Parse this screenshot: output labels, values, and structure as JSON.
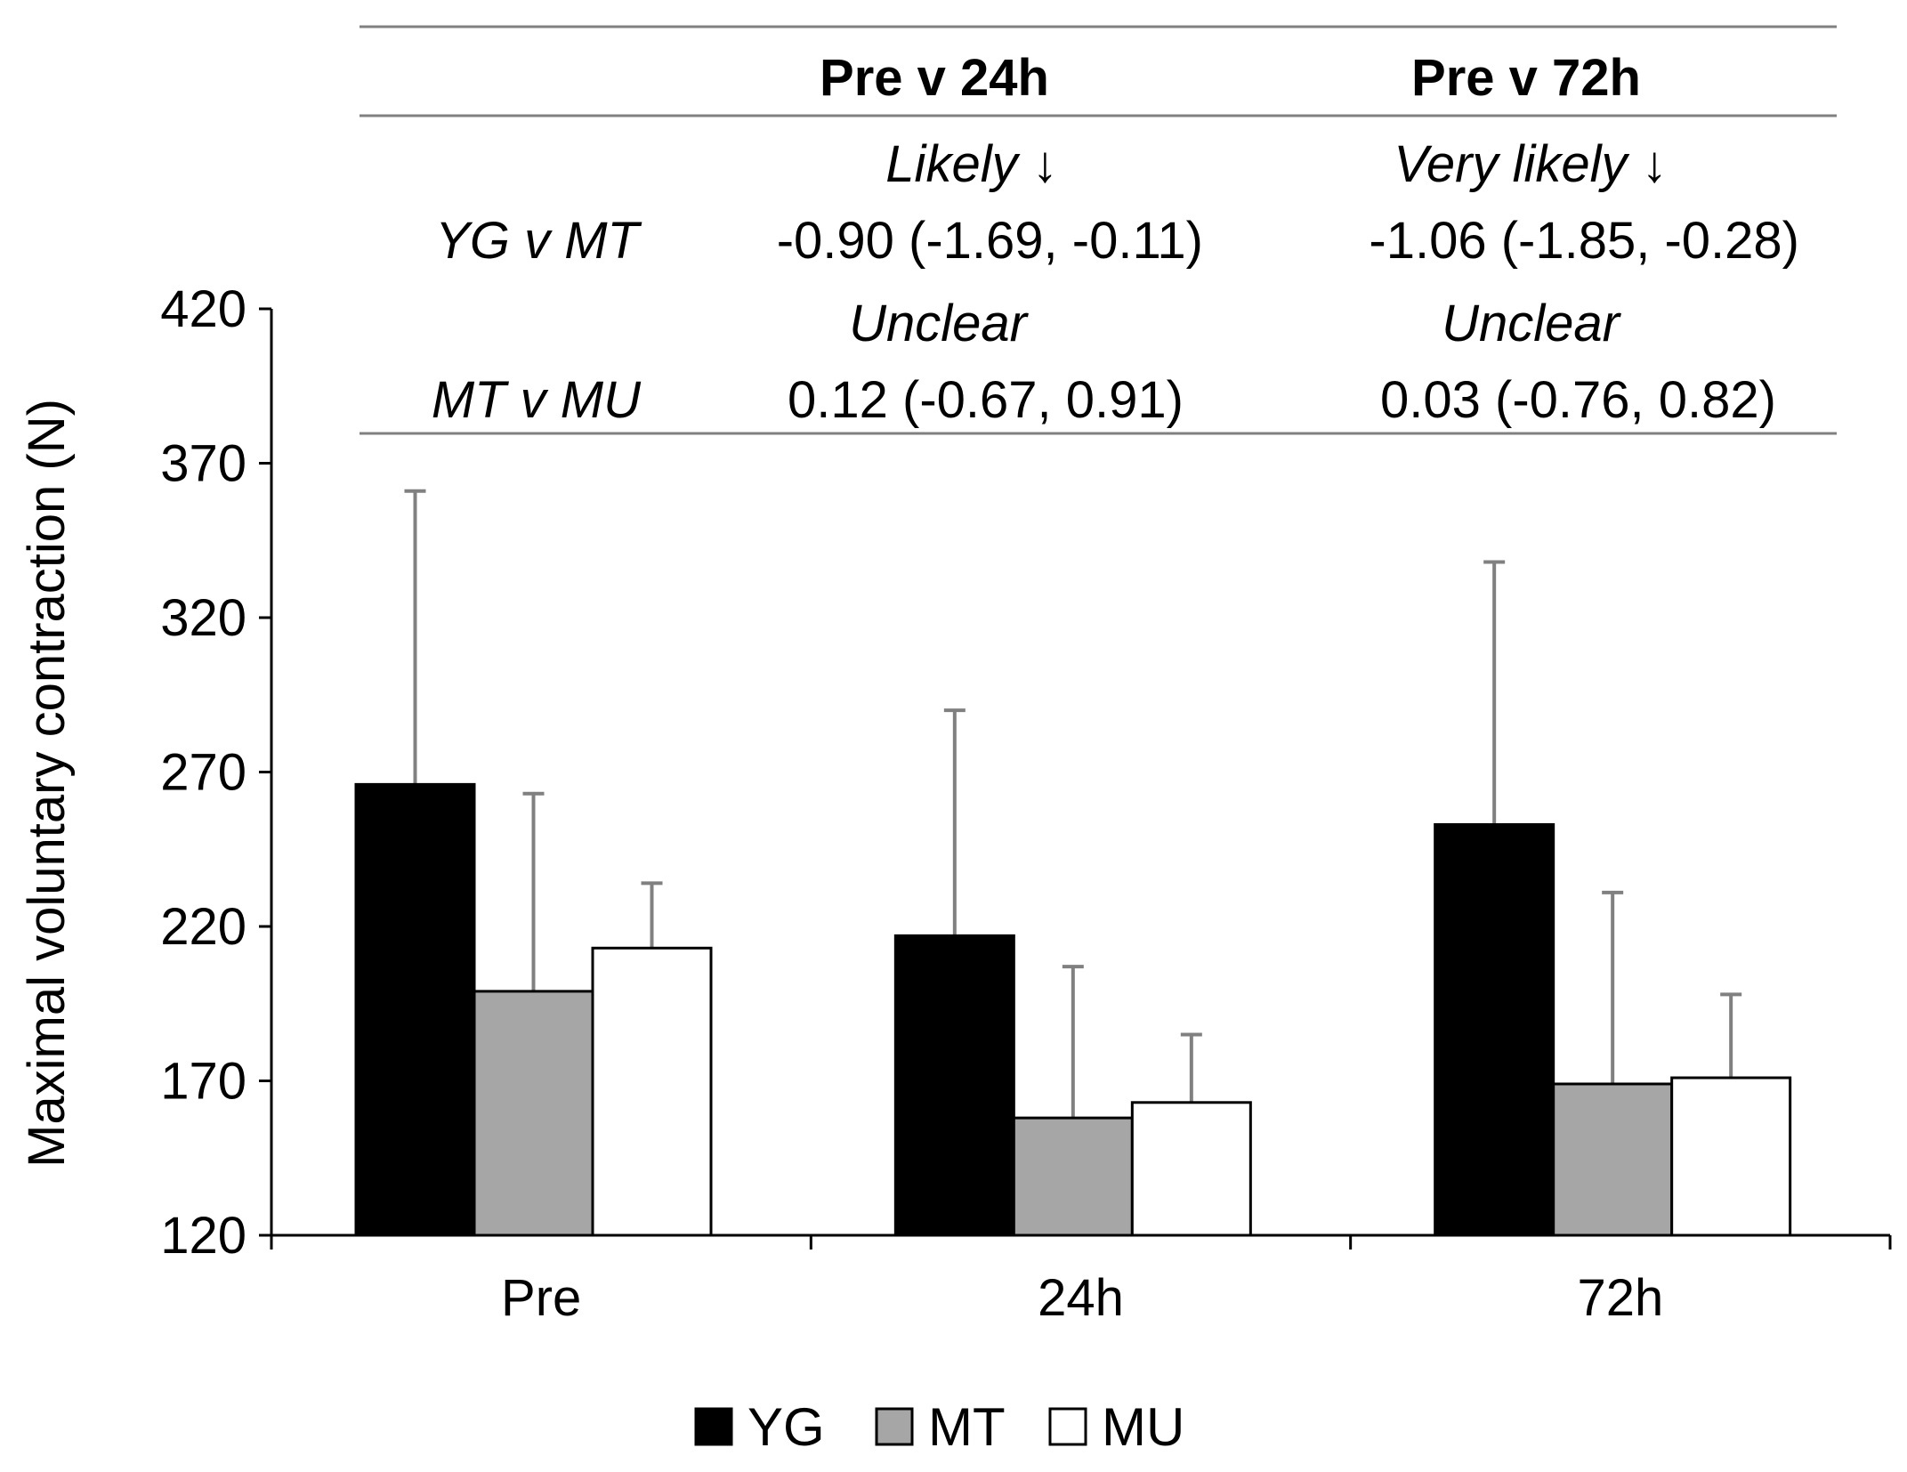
{
  "chart_data": {
    "type": "bar",
    "title": "",
    "xlabel": "",
    "ylabel": "Maximal voluntary contraction (N)",
    "ylim": [
      120,
      420
    ],
    "yticks": [
      120,
      170,
      220,
      270,
      320,
      370,
      420
    ],
    "categories": [
      "Pre",
      "24h",
      "72h"
    ],
    "series": [
      {
        "name": "YG",
        "color": "#000000",
        "values": [
          266,
          217,
          253
        ],
        "errors": [
          95,
          73,
          85
        ]
      },
      {
        "name": "MT",
        "color": "#a6a6a6",
        "values": [
          199,
          158,
          169
        ],
        "errors": [
          64,
          49,
          62
        ]
      },
      {
        "name": "MU",
        "color": "#ffffff",
        "values": [
          213,
          163,
          171
        ],
        "errors": [
          21,
          22,
          27
        ]
      }
    ],
    "error_color": "#808080",
    "legend_position": "bottom-center",
    "stats_table": {
      "headers": [
        "Pre v 24h",
        "Pre v 72h"
      ],
      "rows": [
        {
          "label": "YG v MT",
          "inferences": [
            "Likely ↓",
            "Very likely ↓"
          ],
          "values": [
            "-0.90 (-1.69, -0.11)",
            "-1.06 (-1.85, -0.28)"
          ]
        },
        {
          "label": "MT v MU",
          "inferences": [
            "Unclear",
            "Unclear"
          ],
          "values": [
            "0.12 (-0.67, 0.91)",
            "0.03 (-0.76, 0.82)"
          ]
        }
      ]
    }
  }
}
